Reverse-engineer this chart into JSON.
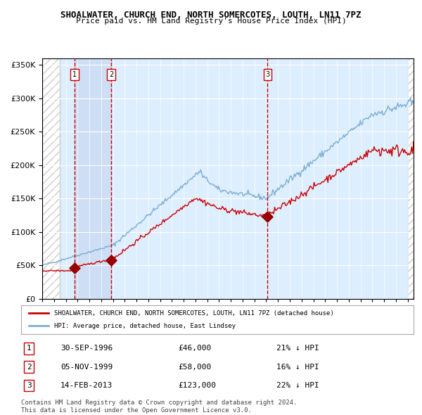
{
  "title": "SHOALWATER, CHURCH END, NORTH SOMERCOTES, LOUTH, LN11 7PZ",
  "subtitle": "Price paid vs. HM Land Registry's House Price Index (HPI)",
  "legend_line1": "SHOALWATER, CHURCH END, NORTH SOMERCOTES, LOUTH, LN11 7PZ (detached house)",
  "legend_line2": "HPI: Average price, detached house, East Lindsey",
  "footer1": "Contains HM Land Registry data © Crown copyright and database right 2024.",
  "footer2": "This data is licensed under the Open Government Licence v3.0.",
  "transactions": [
    {
      "num": 1,
      "date": "30-SEP-1996",
      "price": 46000,
      "pct": "21%",
      "dir": "↓",
      "x_year": 1996.75
    },
    {
      "num": 2,
      "date": "05-NOV-1999",
      "price": 58000,
      "pct": "16%",
      "dir": "↓",
      "x_year": 1999.85
    },
    {
      "num": 3,
      "date": "14-FEB-2013",
      "price": 123000,
      "pct": "22%",
      "dir": "↓",
      "x_year": 2013.12
    }
  ],
  "hpi_color": "#7aadd4",
  "price_color": "#cc0000",
  "marker_color": "#990000",
  "vline_color": "#cc0000",
  "bg_color": "#ddeeff",
  "hatch_color": "#cccccc",
  "ylim": [
    0,
    360000
  ],
  "xlim_start": 1994.0,
  "xlim_end": 2025.5
}
